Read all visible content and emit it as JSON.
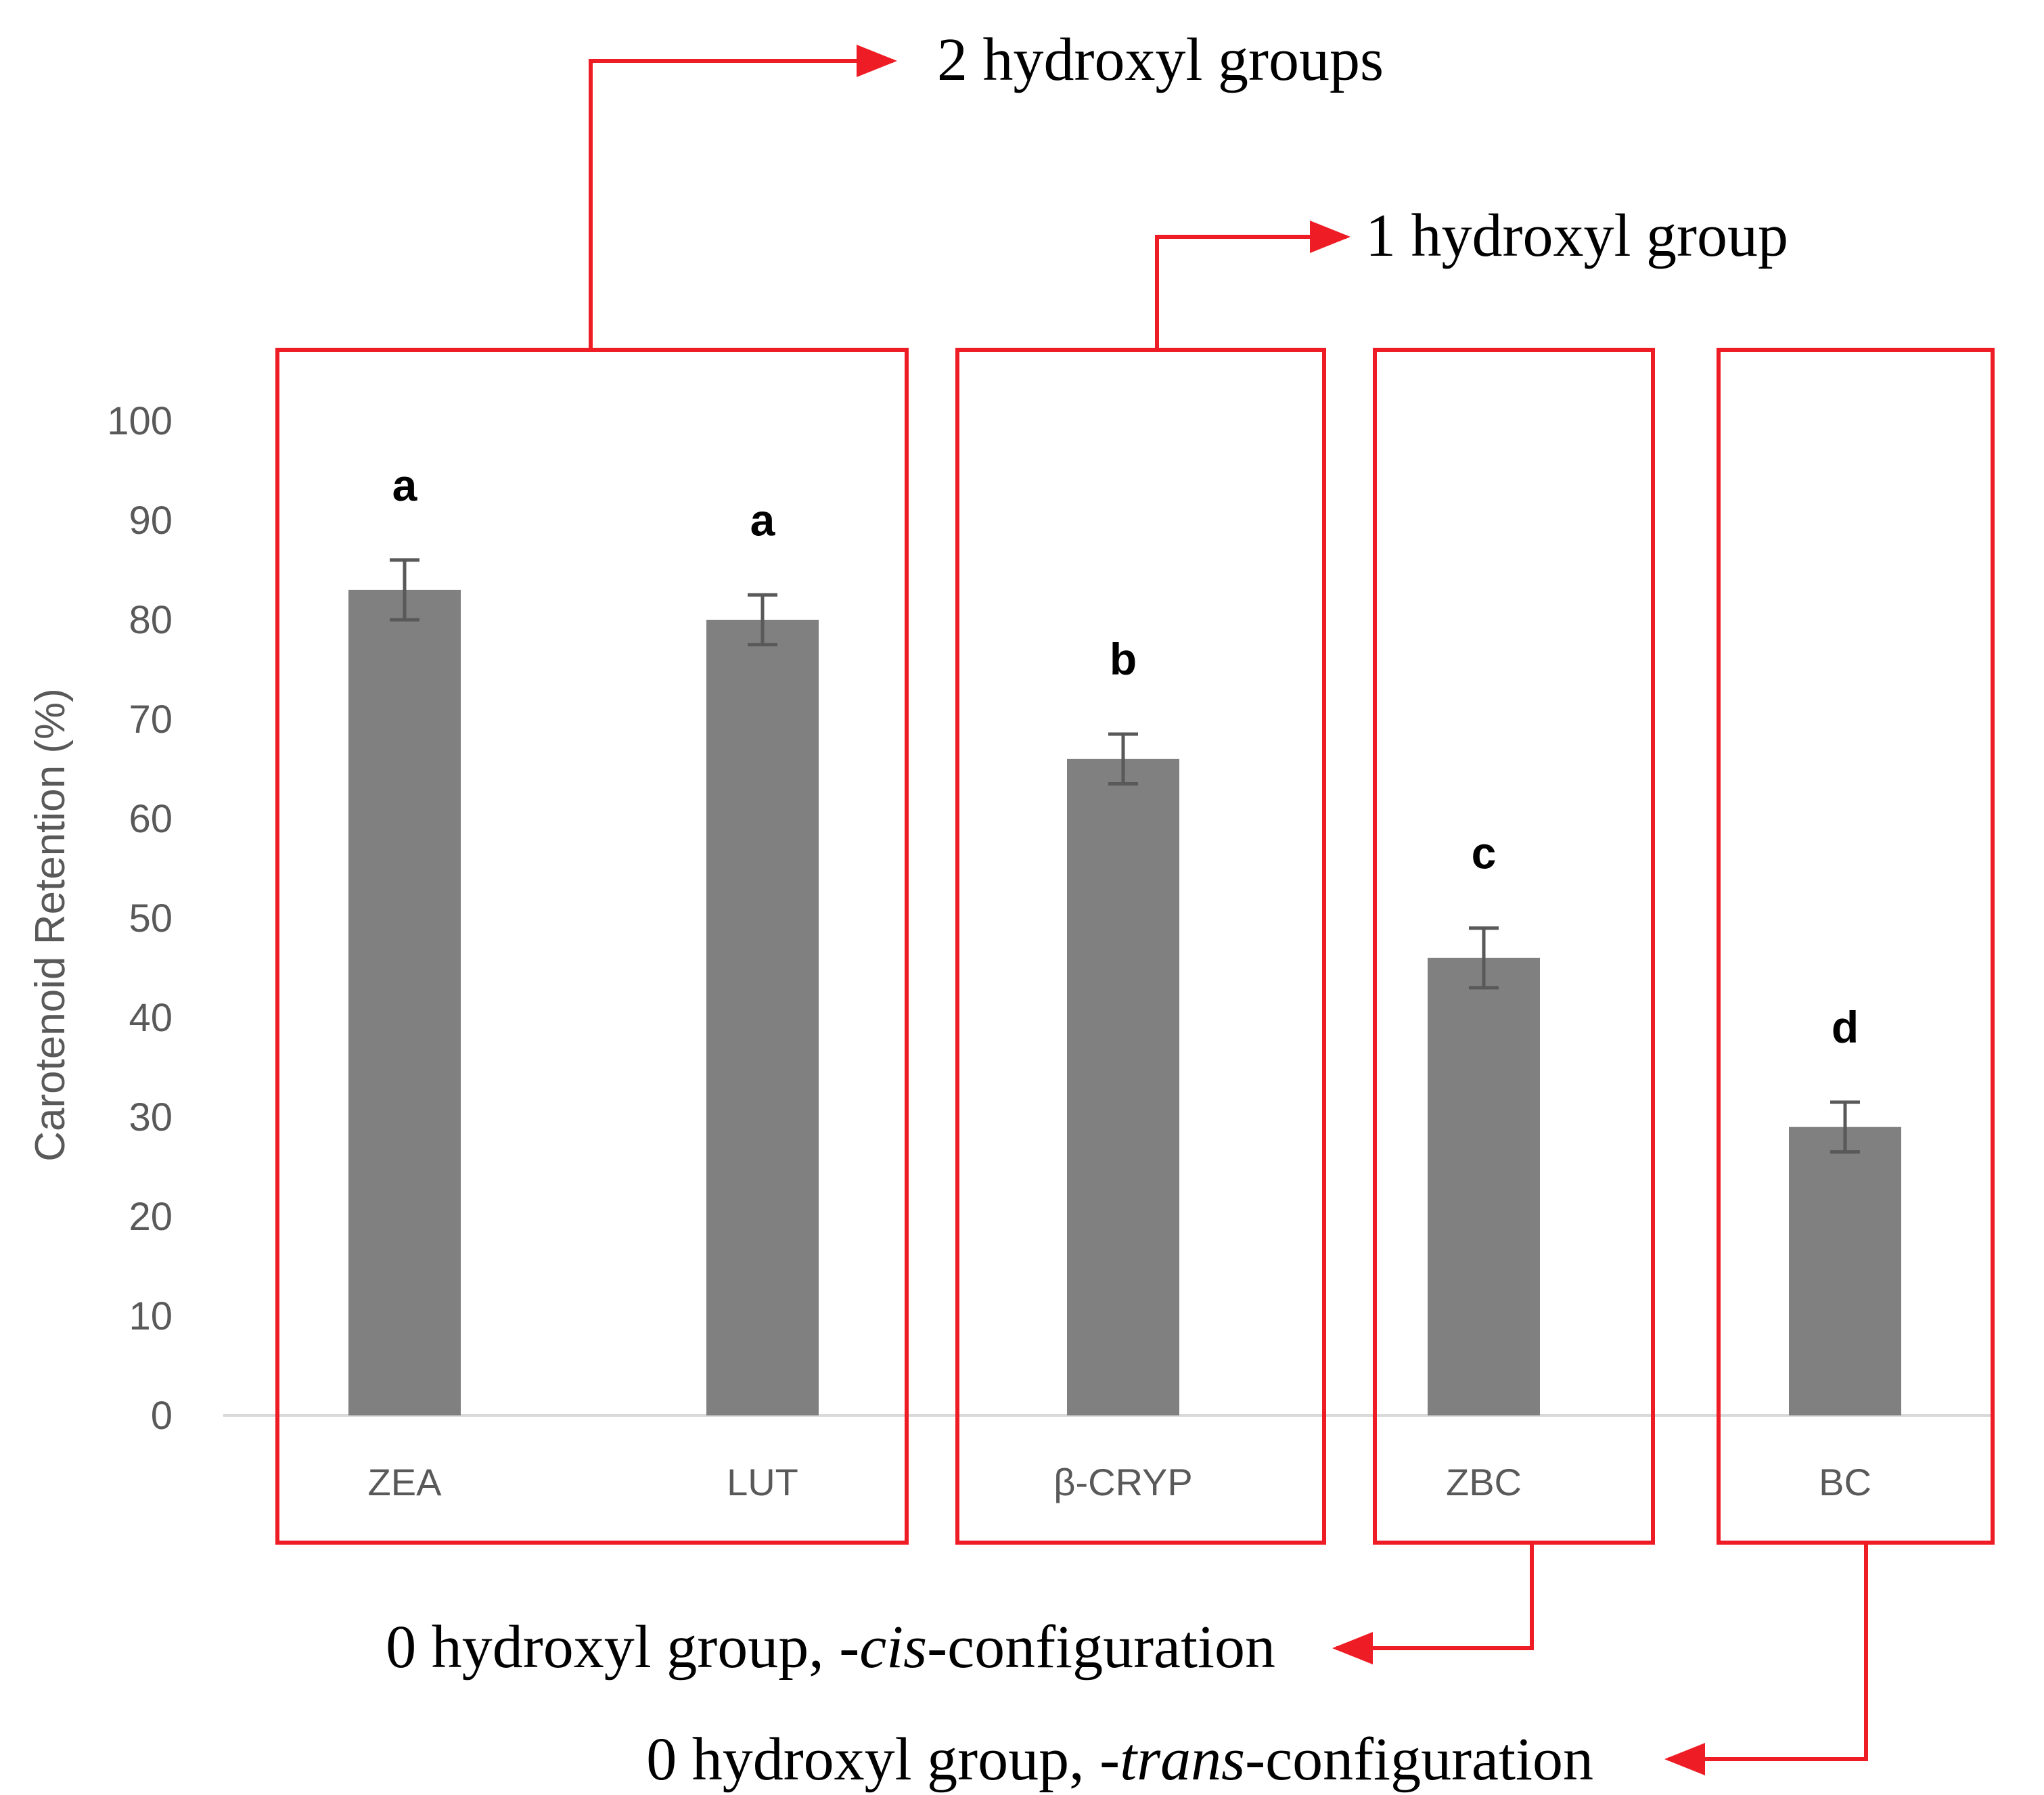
{
  "chart_data": {
    "type": "bar",
    "title": "",
    "xlabel": "",
    "ylabel": "Carotenoid  Retention (%)",
    "ylim": [
      0,
      100
    ],
    "yticks": [
      0,
      10,
      20,
      30,
      40,
      50,
      60,
      70,
      80,
      90,
      100
    ],
    "categories": [
      "ZEA",
      "LUT",
      "β-CRYP",
      "ZBC",
      "BC"
    ],
    "values": [
      83,
      80,
      66,
      46,
      29
    ],
    "errors": [
      3,
      2.5,
      2.5,
      3,
      2.5
    ],
    "significance_letters": [
      "a",
      "a",
      "b",
      "c",
      "d"
    ],
    "bar_color": "#808080",
    "error_bar_color": "#595959",
    "axis_color": "#d9d9d9",
    "grid": false,
    "group_box_color": "#ee1c24",
    "groups": [
      {
        "members": [
          "ZEA",
          "LUT"
        ],
        "label": "2 hydroxyl groups",
        "label_parts": [
          {
            "text": "2 hydroxyl groups",
            "italic": false
          }
        ],
        "label_side": "top"
      },
      {
        "members": [
          "β-CRYP"
        ],
        "label": "1 hydroxyl group",
        "label_parts": [
          {
            "text": "1 hydroxyl group",
            "italic": false
          }
        ],
        "label_side": "top"
      },
      {
        "members": [
          "ZBC"
        ],
        "label": "0 hydroxyl group, -cis-configuration",
        "label_parts": [
          {
            "text": "0 hydroxyl group, -",
            "italic": false
          },
          {
            "text": "cis",
            "italic": true
          },
          {
            "text": "-configuration",
            "italic": false
          }
        ],
        "label_side": "bottom"
      },
      {
        "members": [
          "BC"
        ],
        "label": "0 hydroxyl group, -trans-configuration",
        "label_parts": [
          {
            "text": "0 hydroxyl group, -",
            "italic": false
          },
          {
            "text": "trans",
            "italic": true
          },
          {
            "text": "-configuration",
            "italic": false
          }
        ],
        "label_side": "bottom"
      }
    ]
  }
}
